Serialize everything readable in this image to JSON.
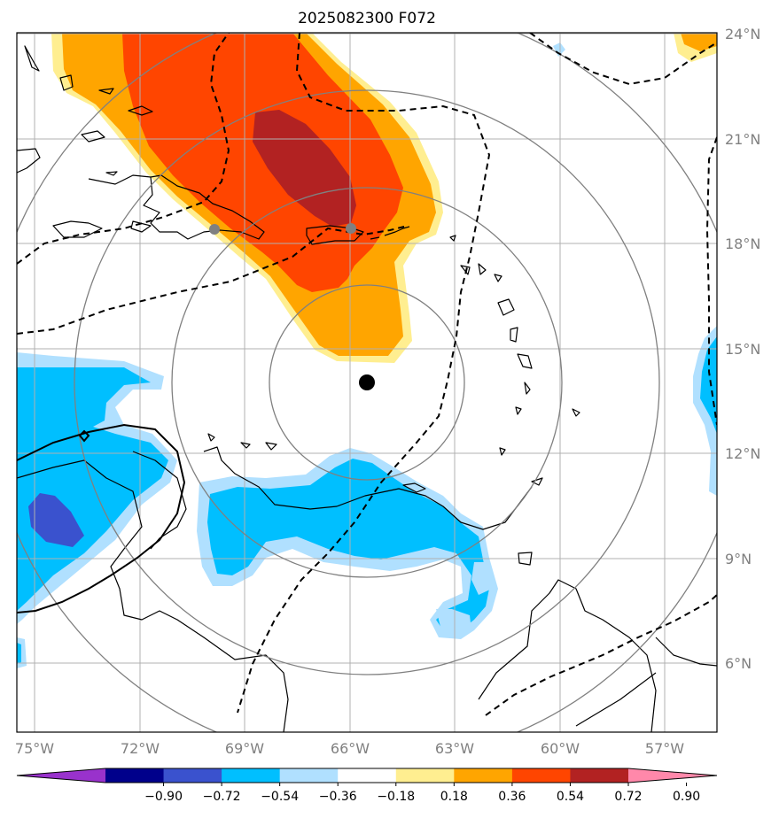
{
  "title": "2025082300 F072",
  "map": {
    "lon_ticks": [
      "75°W",
      "72°W",
      "69°W",
      "66°W",
      "63°W",
      "60°W",
      "57°W"
    ],
    "lat_ticks": [
      "24°N",
      "21°N",
      "18°N",
      "15°N",
      "12°N",
      "9°N",
      "6°N"
    ],
    "extent": {
      "lon_min": -75.5,
      "lon_max": -55.5,
      "lat_min": 4.0,
      "lat_max": 24.0
    },
    "center": {
      "lon": -65.5,
      "lat": 14.0
    },
    "range_rings_count": 4,
    "reference_points": [
      {
        "name": "left-gray-dot",
        "lon": -69.9,
        "lat": 18.4
      },
      {
        "name": "right-gray-dot",
        "lon": -66.0,
        "lat": 18.4
      }
    ]
  },
  "colorbar": {
    "labels": [
      "−0.90",
      "−0.72",
      "−0.54",
      "−0.36",
      "−0.18",
      "0.18",
      "0.36",
      "0.54",
      "0.72",
      "0.90"
    ],
    "colors": [
      "#9932CC",
      "#00008B",
      "#3A52CE",
      "#00BFFF",
      "#B0E0FF",
      "#FFFFFF",
      "#FFEE90",
      "#FFA500",
      "#FF4500",
      "#B22222",
      "#FF88AA"
    ],
    "extend": "both"
  },
  "colors": {
    "yellow": "#FFEE90",
    "orange": "#FFA500",
    "red_orange": "#FF4500",
    "dark_red": "#B22222",
    "light_blue": "#B0E0FF",
    "blue": "#00BFFF",
    "royal_blue": "#3A52CE",
    "ring": "#808080",
    "grid": "#B0B0B0",
    "axis_label": "#808080"
  }
}
